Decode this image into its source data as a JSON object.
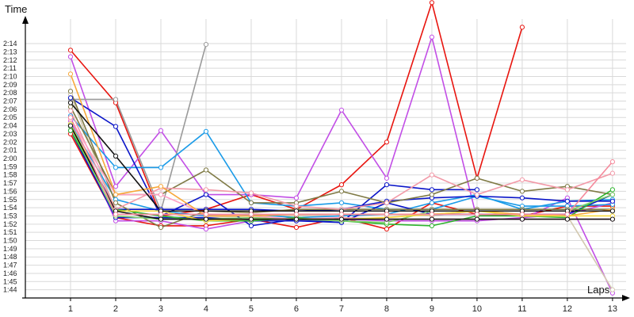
{
  "chart_data": {
    "type": "line",
    "xlabel": "Laps",
    "ylabel": "Time",
    "x": [
      1,
      2,
      3,
      4,
      5,
      6,
      7,
      8,
      9,
      10,
      11,
      12,
      13
    ],
    "xlim": [
      0,
      13.3
    ],
    "ylim": [
      "1:43",
      "2:17"
    ],
    "ytick_labels": [
      "1:44",
      "1:45",
      "1:46",
      "1:47",
      "1:48",
      "1:49",
      "1:50",
      "1:51",
      "1:52",
      "1:53",
      "1:54",
      "1:55",
      "1:56",
      "1:57",
      "1:58",
      "1:59",
      "2:00",
      "2:01",
      "2:02",
      "2:03",
      "2:04",
      "2:05",
      "2:06",
      "2:07",
      "2:08",
      "2:09",
      "2:10",
      "2:11",
      "2:12",
      "2:13",
      "2:14"
    ],
    "xtick_labels": [
      "1",
      "2",
      "3",
      "4",
      "5",
      "6",
      "7",
      "8",
      "9",
      "10",
      "11",
      "12",
      "13"
    ],
    "grid": true,
    "series": [
      {
        "color": "#e8150f",
        "values": [
          "2:13.2",
          "2:06.8",
          "1:53.0",
          "1:53.8",
          "1:55.6",
          "1:53.8",
          "1:56.8",
          "2:02.0",
          "2:19.0",
          "1:57.6",
          "2:16.0",
          null,
          null
        ]
      },
      {
        "color": "#e8150f",
        "values": [
          "2:03.0",
          "1:52.8",
          "1:51.8",
          "1:51.8",
          "1:52.6",
          "1:51.6",
          "1:52.8",
          "1:51.4",
          "1:54.6",
          "1:53.2",
          "1:53.0",
          "1:54.2",
          "1:54.2"
        ]
      },
      {
        "color": "#c24ee6",
        "values": [
          "2:12.4",
          "1:56.6",
          "2:03.4",
          "1:55.6",
          "1:55.6",
          "1:55.2",
          "2:05.9",
          "1:57.6",
          "2:14.8",
          "1:52.6",
          "1:52.6",
          "1:55.2",
          "1:43.6"
        ]
      },
      {
        "color": "#c24ee6",
        "values": [
          "2:04.6",
          "1:52.4",
          "1:52.4",
          "1:51.4",
          "1:52.4",
          "1:52.4",
          "1:52.6",
          "1:52.4",
          "1:52.4",
          "1:52.4",
          "1:52.8",
          "1:53.2",
          "1:54.6"
        ]
      },
      {
        "color": "#9a9a9a",
        "values": [
          "2:07.2",
          "2:07.2",
          "1:53.6",
          "2:13.9",
          null,
          null,
          null,
          null,
          null,
          null,
          null,
          null,
          null
        ]
      },
      {
        "color": "#d3c9b0",
        "values": [
          "2:07.8",
          "1:53.6",
          "1:52.6",
          "1:52.8",
          "1:53.0",
          "1:53.0",
          "1:53.2",
          "1:53.2",
          "1:53.0",
          "1:53.6",
          "1:53.2",
          "1:53.0",
          "1:44.0"
        ]
      },
      {
        "color": "#1a9be8",
        "values": [
          "2:05.2",
          "1:58.9",
          "1:58.9",
          "2:03.3",
          "1:54.6",
          "1:54.2",
          "1:54.6",
          "1:53.8",
          "1:53.8",
          "1:55.4",
          "1:54.2",
          "1:54.2",
          "1:54.4"
        ]
      },
      {
        "color": "#1a9be8",
        "values": [
          "2:04.2",
          "1:55.0",
          "1:53.6",
          "1:53.0",
          "1:53.2",
          "1:52.8",
          "1:53.0",
          "1:53.2",
          "1:54.6",
          "1:55.6",
          "1:53.8",
          "1:54.8",
          "1:55.0"
        ]
      },
      {
        "color": "#0a15c8",
        "values": [
          "2:07.4",
          "2:03.9",
          "1:53.0",
          "1:55.6",
          "1:51.8",
          "1:52.6",
          "1:52.2",
          "1:56.8",
          "1:56.2",
          "1:56.2",
          null,
          null,
          null
        ]
      },
      {
        "color": "#0a15c8",
        "values": [
          "2:03.9",
          "1:53.8",
          "1:53.8",
          "1:53.8",
          "1:53.8",
          "1:53.6",
          "1:53.8",
          "1:54.8",
          "1:55.2",
          "1:55.4",
          "1:55.2",
          "1:54.8",
          "1:54.8"
        ]
      },
      {
        "color": "#0a15c8",
        "values": [
          "2:03.4",
          "1:52.8",
          "1:52.8",
          "1:52.8",
          "1:52.4",
          "1:52.4",
          "1:52.2",
          "1:54.6",
          "1:53.2",
          "1:53.2",
          "1:53.2",
          "1:53.2",
          "1:55.6"
        ]
      },
      {
        "color": "#7f7a45",
        "values": [
          "2:06.3",
          "1:55.6",
          "1:55.6",
          "1:58.6",
          "1:54.6",
          "1:54.6",
          "1:56.0",
          "1:54.6",
          "1:55.6",
          "1:57.6",
          "1:56.0",
          "1:56.6",
          "1:55.6"
        ]
      },
      {
        "color": "#7f7a45",
        "values": [
          "2:08.2",
          "1:54.6",
          "1:51.6",
          "1:53.6",
          "1:53.4",
          "1:53.8",
          "1:53.8",
          "1:53.8",
          "1:53.8",
          "1:53.8",
          "1:53.8",
          "1:53.8",
          "1:53.8"
        ]
      },
      {
        "color": "#2fb52f",
        "values": [
          "2:03.4",
          "1:53.8",
          "1:53.0",
          "1:52.4",
          "1:52.4",
          "1:52.8",
          "1:52.4",
          "1:52.0",
          "1:51.8",
          "1:53.0",
          "1:53.0",
          "1:52.8",
          "1:56.2"
        ]
      },
      {
        "color": "#7fd16b",
        "values": [
          "2:03.9",
          "1:53.0",
          "1:52.6",
          "1:52.6",
          "1:52.8",
          "1:52.6",
          "1:52.4",
          "1:52.2",
          "1:53.6",
          "1:53.6",
          "1:53.6",
          "1:53.6",
          "1:55.6"
        ]
      },
      {
        "color": "#f29aa8",
        "values": [
          "2:05.8",
          "1:53.8",
          "1:56.4",
          "1:56.2",
          "1:55.8",
          "1:54.2",
          "1:53.8",
          "1:54.6",
          "1:58.0",
          "1:55.6",
          "1:57.4",
          "1:56.2",
          "1:58.2"
        ]
      },
      {
        "color": "#ff9fc4",
        "values": [
          "2:04.8",
          "1:55.6",
          "1:55.6",
          "1:53.2",
          "1:53.0",
          "1:52.6",
          "1:52.8",
          "1:52.6",
          "1:52.6",
          "1:52.6",
          "1:52.6",
          "1:52.6",
          "1:52.6"
        ]
      },
      {
        "color": "#f7a83a",
        "values": [
          "2:10.3",
          "1:55.6",
          "1:56.6",
          "1:53.0",
          "1:53.0",
          "1:53.2",
          "1:53.2",
          "1:53.2",
          "1:53.2",
          "1:53.6",
          "1:53.2",
          "1:53.0",
          "1:53.8"
        ]
      },
      {
        "color": "#f7d93a",
        "values": [
          "2:04.2",
          "1:53.6",
          "1:53.6",
          "1:52.4",
          "1:52.6",
          "1:52.6",
          "1:52.6",
          "1:52.8",
          "1:53.2",
          "1:53.6",
          "1:53.0",
          "1:53.0",
          "1:53.0"
        ]
      },
      {
        "color": "#111111",
        "values": [
          "2:06.8",
          "2:00.3",
          "1:53.6",
          "1:53.6",
          "1:53.6",
          "1:53.6",
          "1:53.6",
          "1:53.6",
          "1:53.6",
          "1:53.6",
          "1:53.6",
          "1:53.6",
          "1:53.6"
        ]
      },
      {
        "color": "#111111",
        "values": [
          "2:04.0",
          "1:53.6",
          "1:52.6",
          "1:52.6",
          "1:52.6",
          "1:52.6",
          "1:52.6",
          "1:52.6",
          "1:52.6",
          "1:52.6",
          "1:52.6",
          "1:52.6",
          "1:52.6"
        ]
      },
      {
        "color": "#f58a9c",
        "values": [
          "2:05.0",
          "1:53.2",
          "1:53.2",
          "1:53.2",
          "1:53.2",
          "1:53.2",
          "1:53.2",
          "1:53.2",
          "1:53.2",
          "1:53.2",
          "1:53.2",
          "1:53.2",
          "1:59.6"
        ]
      }
    ]
  }
}
